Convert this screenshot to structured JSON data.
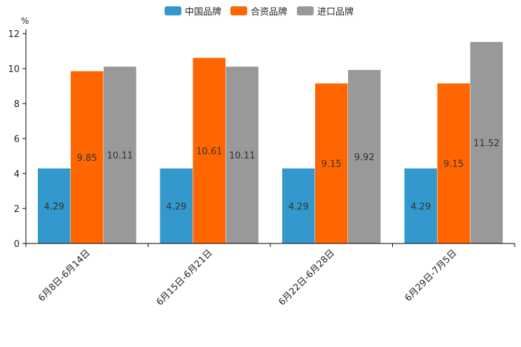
{
  "chart_data": {
    "type": "bar",
    "title": "",
    "xlabel": "",
    "ylabel": "%",
    "ylim": [
      0,
      12
    ],
    "yticks": [
      0,
      2,
      4,
      6,
      8,
      10,
      12
    ],
    "grid": false,
    "legend_position": "top-center",
    "categories": [
      "6月8日-6月14日",
      "6月15日-6月21日",
      "6月22日-6月28日",
      "6月29日-7月5日"
    ],
    "series": [
      {
        "name": "中国品牌",
        "color": "#3399cc",
        "values": [
          4.29,
          4.29,
          4.29,
          4.29
        ],
        "labels": [
          "4.29",
          "4.29",
          "4.29",
          "4.29"
        ]
      },
      {
        "name": "合资品牌",
        "color": "#ff6600",
        "values": [
          9.85,
          10.61,
          9.15,
          9.15
        ],
        "labels": [
          "9.85",
          "10.61",
          "9.15",
          "9.15"
        ]
      },
      {
        "name": "进口品牌",
        "color": "#999999",
        "values": [
          10.11,
          10.11,
          9.92,
          11.52
        ],
        "labels": [
          "10.11",
          "10.11",
          "9.92",
          "11.52"
        ]
      }
    ]
  }
}
